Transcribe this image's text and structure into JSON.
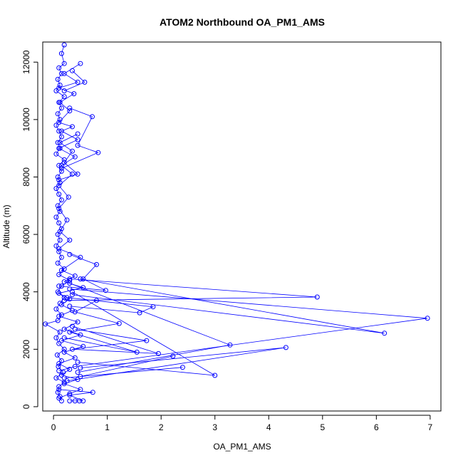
{
  "chart_data": {
    "type": "scatter",
    "title": "ATOM2 Northbound OA_PM1_AMS",
    "xlabel": "OA_PM1_AMS",
    "ylabel": "Altitude (m)",
    "xlim": [
      -0.2,
      7.2
    ],
    "ylim": [
      -150,
      12700
    ],
    "x_ticks": [
      0,
      1,
      2,
      3,
      4,
      5,
      6,
      7
    ],
    "y_ticks": [
      0,
      2000,
      4000,
      6000,
      8000,
      10000,
      12000
    ],
    "grid": false,
    "legend": "none",
    "series_color": "#0000ff",
    "series": [
      {
        "style": "points-and-lines",
        "points": [
          [
            0.15,
            200
          ],
          [
            0.12,
            350
          ],
          [
            0.08,
            500
          ],
          [
            0.1,
            700
          ],
          [
            0.2,
            850
          ],
          [
            0.05,
            1000
          ],
          [
            0.18,
            1200
          ],
          [
            0.09,
            1400
          ],
          [
            0.15,
            1600
          ],
          [
            0.07,
            1800
          ],
          [
            0.2,
            2000
          ],
          [
            0.1,
            2200
          ],
          [
            0.05,
            2400
          ],
          [
            0.12,
            2600
          ],
          [
            -0.15,
            2880
          ],
          [
            0.08,
            3000
          ],
          [
            0.15,
            3200
          ],
          [
            0.05,
            3400
          ],
          [
            0.12,
            3600
          ],
          [
            0.2,
            3800
          ],
          [
            0.08,
            4000
          ],
          [
            0.15,
            4200
          ],
          [
            0.3,
            4400
          ],
          [
            0.1,
            4600
          ],
          [
            0.2,
            4800
          ],
          [
            0.08,
            5000
          ],
          [
            0.15,
            5200
          ],
          [
            0.1,
            5400
          ],
          [
            0.05,
            5600
          ],
          [
            0.12,
            5800
          ],
          [
            0.08,
            6000
          ],
          [
            0.15,
            6200
          ],
          [
            0.1,
            6400
          ],
          [
            0.05,
            6600
          ],
          [
            0.12,
            6800
          ],
          [
            0.08,
            7000
          ],
          [
            0.15,
            7200
          ],
          [
            0.1,
            7400
          ],
          [
            0.05,
            7600
          ],
          [
            0.12,
            7800
          ],
          [
            0.08,
            8000
          ],
          [
            0.15,
            8200
          ],
          [
            0.1,
            8400
          ],
          [
            0.2,
            8600
          ],
          [
            0.05,
            8800
          ],
          [
            0.12,
            9000
          ],
          [
            0.08,
            9200
          ],
          [
            0.15,
            9400
          ],
          [
            0.1,
            9600
          ],
          [
            0.05,
            9800
          ],
          [
            0.12,
            10000
          ],
          [
            0.08,
            10200
          ],
          [
            0.15,
            10400
          ],
          [
            0.1,
            10600
          ],
          [
            0.2,
            10800
          ],
          [
            0.05,
            11000
          ],
          [
            0.12,
            11200
          ],
          [
            0.08,
            11400
          ],
          [
            0.15,
            11600
          ],
          [
            0.1,
            11800
          ],
          [
            0.2,
            11950
          ],
          [
            0.15,
            12300
          ],
          [
            0.2,
            12600
          ]
        ]
      },
      {
        "style": "points-and-lines",
        "points": [
          [
            0.1,
            300
          ],
          [
            0.3,
            450
          ],
          [
            0.5,
            600
          ],
          [
            0.2,
            800
          ],
          [
            0.45,
            950
          ],
          [
            0.15,
            1100
          ],
          [
            0.3,
            1300
          ],
          [
            0.1,
            1500
          ],
          [
            0.4,
            1700
          ],
          [
            0.2,
            1900
          ],
          [
            0.55,
            2100
          ],
          [
            0.15,
            2300
          ],
          [
            0.5,
            2500
          ],
          [
            0.2,
            2700
          ],
          [
            0.45,
            2950
          ],
          [
            0.1,
            3150
          ],
          [
            0.35,
            3350
          ],
          [
            0.15,
            3550
          ],
          [
            0.3,
            3750
          ],
          [
            0.1,
            3950
          ],
          [
            0.55,
            4150
          ],
          [
            0.2,
            4350
          ],
          [
            0.4,
            4550
          ],
          [
            0.15,
            4750
          ],
          [
            0.5,
            5200
          ],
          [
            0.1,
            5500
          ],
          [
            0.3,
            5800
          ],
          [
            0.12,
            6100
          ],
          [
            0.25,
            6500
          ],
          [
            0.1,
            6900
          ],
          [
            0.28,
            7300
          ],
          [
            0.1,
            7700
          ],
          [
            0.35,
            8100
          ],
          [
            0.15,
            8400
          ],
          [
            0.4,
            8700
          ],
          [
            0.1,
            9000
          ],
          [
            0.45,
            9300
          ],
          [
            0.15,
            9600
          ],
          [
            0.35,
            9750
          ],
          [
            0.1,
            9900
          ],
          [
            0.3,
            10300
          ],
          [
            0.12,
            10600
          ],
          [
            0.38,
            10900
          ],
          [
            0.1,
            11100
          ],
          [
            0.45,
            11300
          ],
          [
            0.2,
            11600
          ],
          [
            0.5,
            11950
          ]
        ]
      },
      {
        "style": "points-and-lines",
        "points": [
          [
            0.2,
            3700
          ],
          [
            4.9,
            3820
          ],
          [
            0.3,
            4450
          ]
        ]
      },
      {
        "style": "points-and-lines",
        "points": [
          [
            0.5,
            4450
          ],
          [
            6.15,
            2560
          ],
          [
            0.35,
            3900
          ]
        ]
      },
      {
        "style": "points-and-lines",
        "points": [
          [
            0.3,
            4100
          ],
          [
            6.95,
            3080
          ],
          [
            0.4,
            1400
          ],
          [
            0.1,
            1250
          ]
        ]
      },
      {
        "style": "points-and-lines",
        "points": [
          [
            0.25,
            900
          ],
          [
            4.32,
            2060
          ],
          [
            0.5,
            1350
          ]
        ]
      },
      {
        "style": "points-and-lines",
        "points": [
          [
            0.3,
            4300
          ],
          [
            3.28,
            2150
          ],
          [
            0.45,
            1200
          ]
        ]
      },
      {
        "style": "points-and-lines",
        "points": [
          [
            0.35,
            4000
          ],
          [
            3.0,
            1090
          ],
          [
            0.45,
            1550
          ]
        ]
      },
      {
        "style": "points-and-lines",
        "points": [
          [
            0.2,
            1000
          ],
          [
            2.4,
            1370
          ],
          [
            0.5,
            1050
          ],
          [
            2.22,
            1760
          ]
        ]
      },
      {
        "style": "points-and-lines",
        "points": [
          [
            0.3,
            3500
          ],
          [
            1.6,
            3270
          ],
          [
            1.85,
            3480
          ],
          [
            0.25,
            3800
          ]
        ]
      },
      {
        "style": "points-and-lines",
        "points": [
          [
            0.35,
            2800
          ],
          [
            1.95,
            1850
          ],
          [
            0.35,
            2000
          ],
          [
            1.73,
            2300
          ],
          [
            0.4,
            2700
          ]
        ]
      },
      {
        "style": "points-and-lines",
        "points": [
          [
            0.2,
            2400
          ],
          [
            1.55,
            1900
          ],
          [
            0.3,
            2600
          ],
          [
            1.22,
            2900
          ],
          [
            0.4,
            3300
          ],
          [
            0.8,
            3700
          ]
        ]
      },
      {
        "style": "points-and-lines",
        "points": [
          [
            0.1,
            4200
          ],
          [
            0.97,
            4050
          ],
          [
            0.55,
            4450
          ],
          [
            0.8,
            4950
          ],
          [
            0.3,
            5300
          ]
        ]
      },
      {
        "style": "points-and-lines",
        "points": [
          [
            0.15,
            8300
          ],
          [
            0.83,
            8850
          ],
          [
            0.45,
            9100
          ],
          [
            0.72,
            10100
          ],
          [
            0.3,
            10400
          ]
        ]
      },
      {
        "style": "points-and-lines",
        "points": [
          [
            0.2,
            11000
          ],
          [
            0.58,
            11300
          ],
          [
            0.35,
            11700
          ]
        ]
      },
      {
        "style": "points-and-lines",
        "points": [
          [
            0.1,
            600
          ],
          [
            0.73,
            500
          ],
          [
            0.3,
            400
          ],
          [
            0.55,
            200
          ],
          [
            0.4,
            200
          ],
          [
            0.48,
            200
          ],
          [
            0.3,
            200
          ]
        ]
      },
      {
        "style": "points-and-lines",
        "points": [
          [
            0.1,
            7900
          ],
          [
            0.45,
            8100
          ],
          [
            0.2,
            8500
          ],
          [
            0.35,
            8900
          ],
          [
            0.12,
            9200
          ],
          [
            0.45,
            9500
          ]
        ]
      }
    ]
  }
}
